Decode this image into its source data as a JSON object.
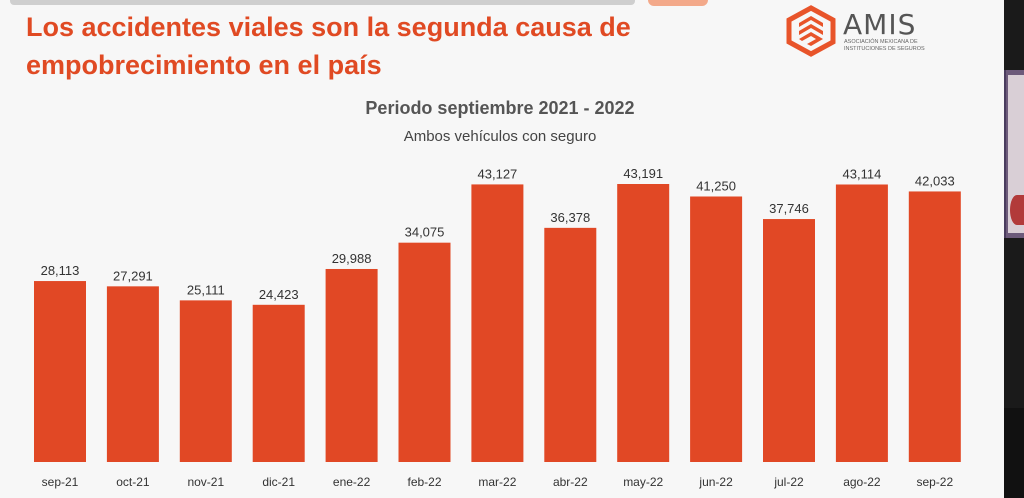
{
  "headline": {
    "line1": "Los accidentes viales son la segunda causa de",
    "line2": "empobrecimiento en el país"
  },
  "logo": {
    "word": "AMIS",
    "subtitle_line1": "Asociación Mexicana de",
    "subtitle_line2": "Instituciones de Seguros"
  },
  "colors": {
    "accent": "#e04a23",
    "bar": "#e14825",
    "background": "#f7f7f7"
  },
  "chart_data": {
    "type": "bar",
    "title": "Periodo septiembre 2021 - 2022",
    "subtitle": "Ambos vehículos con seguro",
    "categories": [
      "sep-21",
      "oct-21",
      "nov-21",
      "dic-21",
      "ene-22",
      "feb-22",
      "mar-22",
      "abr-22",
      "may-22",
      "jun-22",
      "jul-22",
      "ago-22",
      "sep-22"
    ],
    "values": [
      28113,
      27291,
      25111,
      24423,
      29988,
      34075,
      43127,
      36378,
      43191,
      41250,
      37746,
      43114,
      42033
    ],
    "data_labels": [
      "28,113",
      "27,291",
      "25,111",
      "24,423",
      "29,988",
      "34,075",
      "43,127",
      "36,378",
      "43,191",
      "41,250",
      "37,746",
      "43,114",
      "42,033"
    ],
    "ylim": [
      0,
      43191
    ],
    "grid": false,
    "legend": "none"
  }
}
